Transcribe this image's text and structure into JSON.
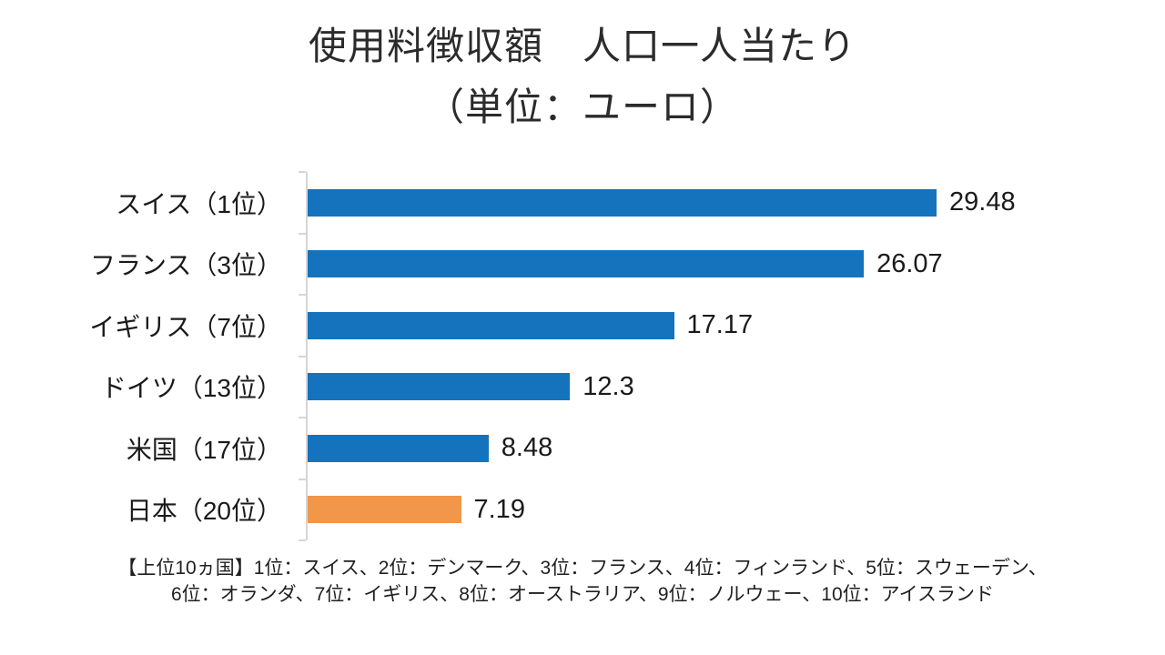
{
  "title": "使用料徴収額　人口一人当たり",
  "subtitle": "（単位：ユーロ）",
  "chart_data": {
    "type": "bar",
    "orientation": "horizontal",
    "title": "使用料徴収額　人口一人当たり（単位：ユーロ）",
    "categories": [
      "スイス（1位）",
      "フランス（3位）",
      "イギリス（7位）",
      "ドイツ（13位）",
      "米国（17位）",
      "日本（20位）"
    ],
    "values": [
      29.48,
      26.07,
      17.17,
      12.3,
      8.48,
      7.19
    ],
    "value_labels": [
      "29.48",
      "26.07",
      "17.17",
      "12.3",
      "8.48",
      "7.19"
    ],
    "bar_colors": [
      "#1572BD",
      "#1572BD",
      "#1572BD",
      "#1572BD",
      "#1572BD",
      "#F2964A"
    ],
    "xlim": [
      0,
      31.5
    ],
    "grid": false,
    "legend": "none",
    "axis_color": "#D6D6D6"
  },
  "colors": {
    "bar_blue": "#1572BD",
    "bar_orange": "#F2964A",
    "axis": "#D6D6D6",
    "text": "#262626"
  },
  "footnote": {
    "line1": "【上位10ヵ国】1位：スイス、2位：デンマーク、3位：フランス、4位：フィンランド、5位：スウェーデン、",
    "line2": "6位：オランダ、7位：イギリス、8位：オーストラリア、9位：ノルウェー、10位：アイスランド"
  }
}
